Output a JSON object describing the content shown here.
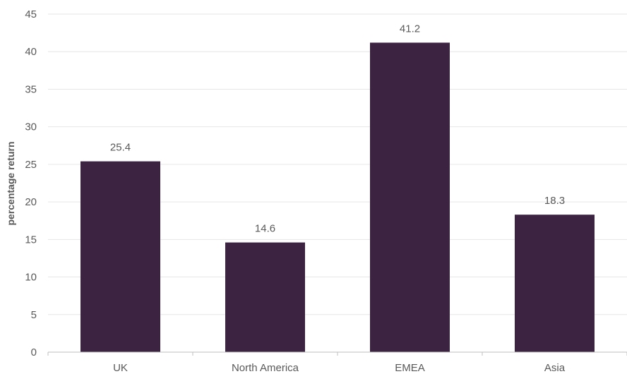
{
  "chart_data": {
    "type": "bar",
    "categories": [
      "UK",
      "North America",
      "EMEA",
      "Asia"
    ],
    "values": [
      25.4,
      14.6,
      41.2,
      18.3
    ],
    "data_labels": [
      "25.4",
      "14.6",
      "41.2",
      "18.3"
    ],
    "title": "",
    "xlabel": "",
    "ylabel": "percentage return",
    "ylim": [
      0,
      45
    ],
    "yticks": [
      "0",
      "5",
      "10",
      "15",
      "20",
      "25",
      "30",
      "35",
      "40",
      "45"
    ],
    "grid": true,
    "legend": "none",
    "bar_color": "#3c2341"
  }
}
